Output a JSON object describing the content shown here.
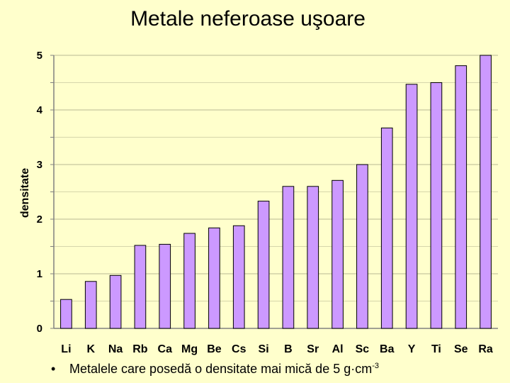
{
  "chart_data": {
    "type": "bar",
    "title": "Metale neferoase uşoare",
    "ylabel": "densitate",
    "xlabel": "",
    "categories": [
      "Li",
      "K",
      "Na",
      "Rb",
      "Ca",
      "Mg",
      "Be",
      "Cs",
      "Si",
      "B",
      "Sr",
      "Al",
      "Sc",
      "Ba",
      "Y",
      "Ti",
      "Se",
      "Ra"
    ],
    "values": [
      0.53,
      0.86,
      0.97,
      1.52,
      1.54,
      1.74,
      1.84,
      1.88,
      2.33,
      2.6,
      2.6,
      2.71,
      3.0,
      3.67,
      4.47,
      4.5,
      4.81,
      5.0
    ],
    "ylim": [
      0,
      5
    ],
    "yticks": [
      "0",
      "1",
      "2",
      "3",
      "4",
      "5"
    ],
    "grid": true,
    "bar_color": "#cc99ff",
    "grid_color": "#c8c8a0",
    "background": "#ffffcc"
  },
  "caption": {
    "bullet": "•",
    "text": "Metalele care posedă o densitate mai mică de 5 g·cm",
    "superscript": "-3"
  }
}
